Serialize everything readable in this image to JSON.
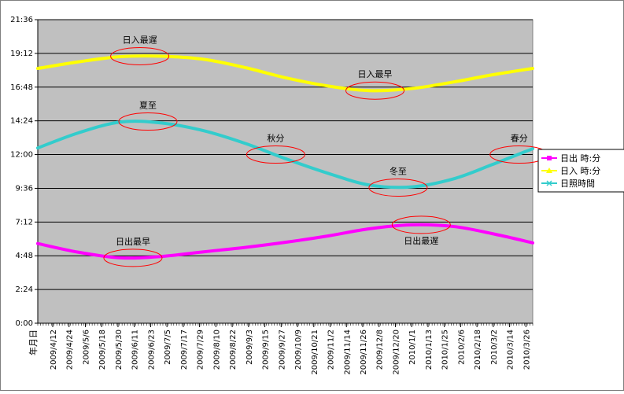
{
  "chart_data": {
    "type": "line",
    "title": "",
    "xlabel": "年月日",
    "ylabel": "",
    "y_unit": "hours (h:mm)",
    "ylim": [
      0,
      21.6
    ],
    "y_ticks": [
      "0:00",
      "2:24",
      "4:48",
      "7:12",
      "9:36",
      "12:00",
      "14:24",
      "16:48",
      "19:12",
      "21:36"
    ],
    "x_range": [
      "2009/4/1",
      "2010/3/31"
    ],
    "x_ticks": [
      "2009/4/12",
      "2009/4/24",
      "2009/5/6",
      "2009/5/18",
      "2009/5/30",
      "2009/6/11",
      "2009/6/23",
      "2009/7/5",
      "2009/7/17",
      "2009/7/29",
      "2009/8/10",
      "2009/8/22",
      "2009/9/3",
      "2009/9/15",
      "2009/9/27",
      "2009/10/9",
      "2009/10/21",
      "2009/11/2",
      "2009/11/14",
      "2009/11/26",
      "2009/12/8",
      "2009/12/20",
      "2010/1/1",
      "2010/1/13",
      "2010/1/25",
      "2010/2/6",
      "2010/2/18",
      "2010/3/2",
      "2010/3/14",
      "2010/3/26"
    ],
    "grid": true,
    "legend_position": "right",
    "plot_background": "#c0c0c0",
    "series": [
      {
        "name": "日出 時:分",
        "color": "#ff00ff",
        "marker": "square",
        "x": [
          "2009/4/1",
          "2009/5/1",
          "2009/6/1",
          "2009/7/1",
          "2009/8/1",
          "2009/9/1",
          "2009/10/1",
          "2009/11/1",
          "2009/12/1",
          "2010/1/1",
          "2010/2/1",
          "2010/3/1",
          "2010/3/31"
        ],
        "values": [
          5.67,
          5.05,
          4.65,
          4.75,
          5.08,
          5.4,
          5.77,
          6.22,
          6.72,
          7.0,
          6.88,
          6.38,
          5.72
        ]
      },
      {
        "name": "日入  時:分",
        "color": "#ffff00",
        "marker": "triangle",
        "x": [
          "2009/4/1",
          "2009/5/1",
          "2009/6/1",
          "2009/7/1",
          "2009/8/1",
          "2009/9/1",
          "2009/10/1",
          "2009/11/1",
          "2009/12/1",
          "2010/1/1",
          "2010/2/1",
          "2010/3/1",
          "2010/3/31"
        ],
        "values": [
          18.13,
          18.6,
          18.97,
          19.0,
          18.78,
          18.18,
          17.45,
          16.87,
          16.55,
          16.7,
          17.17,
          17.67,
          18.13
        ]
      },
      {
        "name": "日照時間",
        "color": "#33cccc",
        "marker": "x",
        "x": [
          "2009/4/1",
          "2009/5/1",
          "2009/6/1",
          "2009/7/1",
          "2009/8/1",
          "2009/9/1",
          "2009/10/1",
          "2009/11/1",
          "2009/12/1",
          "2010/1/1",
          "2010/2/1",
          "2010/3/1",
          "2010/3/31"
        ],
        "values": [
          12.47,
          13.55,
          14.32,
          14.25,
          13.7,
          12.78,
          11.68,
          10.65,
          9.83,
          9.7,
          10.28,
          11.28,
          12.42
        ]
      }
    ],
    "annotations": [
      {
        "label": "日入最遅",
        "x": "2009/6/15",
        "y": 19.0
      },
      {
        "label": "日入最早",
        "x": "2009/12/5",
        "y": 16.55
      },
      {
        "label": "夏至",
        "x": "2009/6/21",
        "y": 14.35
      },
      {
        "label": "秋分",
        "x": "2009/9/23",
        "y": 12.0
      },
      {
        "label": "冬至",
        "x": "2009/12/22",
        "y": 9.65
      },
      {
        "label": "春分",
        "x": "2010/3/21",
        "y": 12.0
      },
      {
        "label": "日出最早",
        "x": "2009/6/10",
        "y": 4.65
      },
      {
        "label": "日出最遅",
        "x": "2010/1/8",
        "y": 7.0
      }
    ]
  }
}
